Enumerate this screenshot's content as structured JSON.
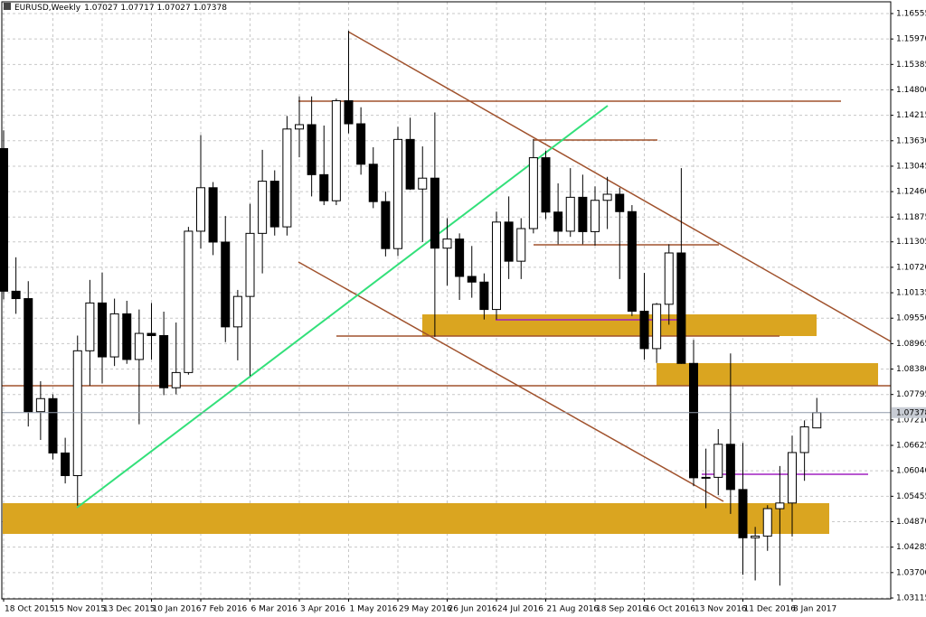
{
  "chart_data": {
    "type": "candlestick",
    "title": "EURUSD,Weekly",
    "categories": [
      "18 Oct 2015",
      null,
      null,
      null,
      "15 Nov 2015",
      null,
      null,
      null,
      "13 Dec 2015",
      null,
      null,
      null,
      "10 Jan 2016",
      null,
      null,
      null,
      "7 Feb 2016",
      null,
      null,
      null,
      "6 Mar 2016",
      null,
      null,
      null,
      "3 Apr 2016",
      null,
      null,
      null,
      "1 May 2016",
      null,
      null,
      null,
      "29 May 2016",
      null,
      null,
      null,
      "26 Jun 2016",
      null,
      null,
      null,
      "24 Jul 2016",
      null,
      null,
      null,
      "21 Aug 2016",
      null,
      null,
      null,
      "18 Sep 2016",
      null,
      null,
      null,
      "16 Oct 2016",
      null,
      null,
      null,
      "13 Nov 2016",
      null,
      null,
      null,
      "11 Dec 2016",
      null,
      null,
      null,
      "8 Jan 2017",
      null,
      null
    ],
    "open": [
      1.1345,
      1.1017,
      1.1,
      1.074,
      1.077,
      1.0645,
      1.0593,
      1.088,
      1.099,
      1.0866,
      1.0965,
      1.086,
      1.092,
      1.0915,
      1.0795,
      1.083,
      1.1155,
      1.1255,
      1.113,
      1.0935,
      1.1005,
      1.115,
      1.127,
      1.1165,
      1.139,
      1.14,
      1.1285,
      1.1225,
      1.1455,
      1.1402,
      1.1309,
      1.1223,
      1.1115,
      1.1366,
      1.1252,
      1.1277,
      1.1116,
      1.1137,
      1.1051,
      1.1038,
      1.0975,
      1.1176,
      1.1086,
      1.1161,
      1.1324,
      1.1199,
      1.1155,
      1.1233,
      1.1154,
      1.1226,
      1.124,
      1.12,
      1.0971,
      1.0885,
      1.0987,
      1.1105,
      1.0851,
      1.0588,
      1.0589,
      1.0665,
      1.0561,
      1.045,
      1.0454,
      1.0517,
      1.053,
      1.0646,
      1.07027
    ],
    "high": [
      1.1387,
      1.1095,
      1.104,
      1.081,
      1.078,
      1.068,
      1.0915,
      1.1043,
      1.106,
      1.1,
      1.0995,
      1.0975,
      1.099,
      1.097,
      1.0945,
      1.1165,
      1.1376,
      1.1268,
      1.119,
      1.102,
      1.1218,
      1.1342,
      1.1295,
      1.142,
      1.1465,
      1.1465,
      1.1398,
      1.146,
      1.1616,
      1.144,
      1.1348,
      1.1246,
      1.1395,
      1.1416,
      1.135,
      1.1428,
      1.1185,
      1.115,
      1.1121,
      1.1058,
      1.12,
      1.1235,
      1.1185,
      1.1367,
      1.134,
      1.1265,
      1.13,
      1.1285,
      1.1258,
      1.128,
      1.1255,
      1.1215,
      1.1059,
      1.099,
      1.1125,
      1.13,
      1.0905,
      1.0655,
      1.07,
      1.0874,
      1.0668,
      1.0475,
      1.0525,
      1.0615,
      1.0685,
      1.072,
      1.07717
    ],
    "low": [
      1.0998,
      1.0965,
      1.0706,
      1.0675,
      1.063,
      1.0575,
      1.0524,
      1.08,
      1.0805,
      1.0845,
      1.085,
      1.0711,
      1.086,
      1.0778,
      1.078,
      1.0825,
      1.1115,
      1.11,
      1.09,
      1.0858,
      1.0822,
      1.1058,
      1.1145,
      1.1145,
      1.1325,
      1.1235,
      1.1215,
      1.1215,
      1.138,
      1.1285,
      1.1208,
      1.1097,
      1.1098,
      1.125,
      1.113,
      1.0912,
      1.103,
      1.0997,
      1.1002,
      1.0952,
      1.0952,
      1.1045,
      1.1045,
      1.115,
      1.1183,
      1.1125,
      1.1142,
      1.1125,
      1.1122,
      1.116,
      1.1045,
      1.096,
      1.086,
      1.0852,
      1.094,
      1.085,
      1.0569,
      1.0518,
      1.0548,
      1.0505,
      1.0365,
      1.0352,
      1.042,
      1.034,
      1.0453,
      1.0581,
      1.07027
    ],
    "close": [
      1.1017,
      1.1,
      1.074,
      1.077,
      1.0645,
      1.0593,
      1.088,
      1.099,
      1.0866,
      1.0965,
      1.086,
      1.092,
      1.0915,
      1.0795,
      1.083,
      1.1155,
      1.1255,
      1.113,
      1.0935,
      1.1005,
      1.115,
      1.127,
      1.1165,
      1.139,
      1.14,
      1.1285,
      1.1225,
      1.1455,
      1.1402,
      1.1309,
      1.1223,
      1.1115,
      1.1366,
      1.1252,
      1.1277,
      1.1116,
      1.1137,
      1.1051,
      1.1038,
      1.0975,
      1.1176,
      1.1086,
      1.1161,
      1.1324,
      1.1199,
      1.1155,
      1.1233,
      1.1154,
      1.1226,
      1.124,
      1.12,
      1.0971,
      1.0885,
      1.0987,
      1.1105,
      1.0851,
      1.0588,
      1.0589,
      1.0665,
      1.0561,
      1.045,
      1.0454,
      1.0517,
      1.053,
      1.0646,
      1.0705,
      1.07378
    ],
    "up_color": "#ffffff",
    "down_color": "#000000",
    "ylim": [
      1.03094,
      1.16825
    ],
    "yticks": [
      1.16555,
      {
        "value": 1.1597,
        "label": "1.15970"
      },
      1.15385,
      {
        "value": 1.148,
        "label": "1.14800"
      },
      1.14215,
      {
        "value": 1.1363,
        "label": "1.13630"
      },
      1.13045,
      {
        "value": 1.1246,
        "label": "1.12460"
      },
      1.11875,
      1.11305,
      {
        "value": 1.1072,
        "label": "1.10720"
      },
      1.10135,
      {
        "value": 1.0955,
        "label": "1.09550"
      },
      1.08965,
      {
        "value": 1.0838,
        "label": "1.08380"
      },
      1.07795,
      {
        "value": 1.0721,
        "label": "1.07210"
      },
      1.06625,
      {
        "value": 1.0604,
        "label": "1.06040"
      },
      1.05455,
      {
        "value": 1.0487,
        "label": "1.04870"
      },
      1.04285,
      {
        "value": 1.037,
        "label": "1.03700"
      },
      1.03115
    ],
    "grid": true
  }
}
